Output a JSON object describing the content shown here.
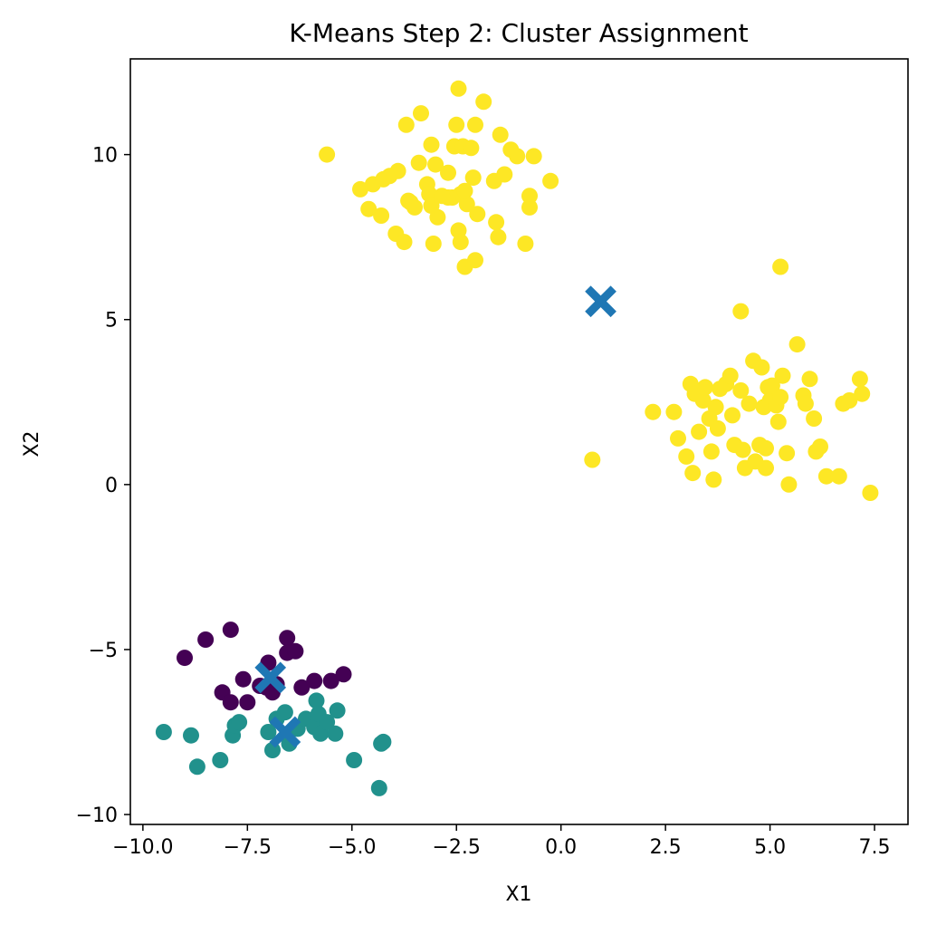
{
  "chart_data": {
    "type": "scatter",
    "title": "K-Means Step 2: Cluster Assignment",
    "xlabel": "X1",
    "ylabel": "X2",
    "xlim": [
      -10.3,
      8.3
    ],
    "ylim": [
      -10.3,
      12.9
    ],
    "xticks": [
      -10.0,
      -7.5,
      -5.0,
      -2.5,
      0.0,
      2.5,
      5.0,
      7.5
    ],
    "xtick_labels": [
      "−10.0",
      "−7.5",
      "−5.0",
      "−2.5",
      "0.0",
      "2.5",
      "5.0",
      "7.5"
    ],
    "yticks": [
      -10,
      -5,
      0,
      5,
      10
    ],
    "ytick_labels": [
      "−10",
      "−5",
      "0",
      "5",
      "10"
    ],
    "grid": false,
    "colors": {
      "cluster_0": "#440154",
      "cluster_1": "#21918c",
      "cluster_2": "#fde725",
      "centroid": "#1f77b4"
    },
    "series": [
      {
        "cluster": 0,
        "color_key": "cluster_0",
        "points": [
          [
            -9.0,
            -5.25
          ],
          [
            -8.5,
            -4.7
          ],
          [
            -7.9,
            -4.4
          ],
          [
            -7.6,
            -5.9
          ],
          [
            -8.1,
            -6.3
          ],
          [
            -7.9,
            -6.6
          ],
          [
            -7.5,
            -6.6
          ],
          [
            -7.0,
            -5.4
          ],
          [
            -7.05,
            -6.15
          ],
          [
            -6.8,
            -6.05
          ],
          [
            -6.55,
            -4.65
          ],
          [
            -6.55,
            -5.1
          ],
          [
            -6.35,
            -5.05
          ],
          [
            -6.2,
            -6.15
          ],
          [
            -5.9,
            -5.95
          ],
          [
            -5.5,
            -5.95
          ],
          [
            -5.2,
            -5.75
          ],
          [
            -7.2,
            -6.1
          ],
          [
            -6.9,
            -6.3
          ]
        ]
      },
      {
        "cluster": 1,
        "color_key": "cluster_1",
        "points": [
          [
            -9.5,
            -7.5
          ],
          [
            -8.85,
            -7.6
          ],
          [
            -8.7,
            -8.55
          ],
          [
            -8.15,
            -8.35
          ],
          [
            -7.85,
            -7.6
          ],
          [
            -7.8,
            -7.3
          ],
          [
            -7.7,
            -7.2
          ],
          [
            -7.0,
            -7.5
          ],
          [
            -6.9,
            -8.05
          ],
          [
            -6.8,
            -7.1
          ],
          [
            -6.6,
            -6.9
          ],
          [
            -6.5,
            -7.85
          ],
          [
            -6.3,
            -7.4
          ],
          [
            -6.1,
            -7.1
          ],
          [
            -5.9,
            -7.35
          ],
          [
            -5.85,
            -6.55
          ],
          [
            -5.8,
            -6.95
          ],
          [
            -5.75,
            -7.55
          ],
          [
            -5.6,
            -7.2
          ],
          [
            -5.4,
            -7.55
          ],
          [
            -5.35,
            -6.85
          ],
          [
            -4.95,
            -8.35
          ],
          [
            -4.3,
            -7.85
          ],
          [
            -4.25,
            -7.8
          ],
          [
            -4.35,
            -9.2
          ]
        ]
      },
      {
        "cluster": 2,
        "color_key": "cluster_2",
        "points": [
          [
            -5.6,
            10.0
          ],
          [
            -4.8,
            8.95
          ],
          [
            -4.6,
            8.35
          ],
          [
            -4.5,
            9.1
          ],
          [
            -4.3,
            8.15
          ],
          [
            -4.25,
            9.25
          ],
          [
            -4.1,
            9.35
          ],
          [
            -3.95,
            7.6
          ],
          [
            -3.9,
            9.5
          ],
          [
            -3.75,
            7.35
          ],
          [
            -3.7,
            10.9
          ],
          [
            -3.65,
            8.6
          ],
          [
            -3.6,
            8.55
          ],
          [
            -3.5,
            8.4
          ],
          [
            -3.4,
            9.75
          ],
          [
            -3.35,
            11.25
          ],
          [
            -3.2,
            9.1
          ],
          [
            -3.15,
            8.8
          ],
          [
            -3.1,
            10.3
          ],
          [
            -3.05,
            7.3
          ],
          [
            -3.0,
            9.7
          ],
          [
            -2.95,
            8.1
          ],
          [
            -2.7,
            9.45
          ],
          [
            -2.55,
            10.25
          ],
          [
            -2.6,
            8.7
          ],
          [
            -2.45,
            12.0
          ],
          [
            -2.4,
            8.8
          ],
          [
            -2.5,
            10.9
          ],
          [
            -2.45,
            7.7
          ],
          [
            -2.4,
            7.35
          ],
          [
            -2.35,
            10.25
          ],
          [
            -2.3,
            6.6
          ],
          [
            -2.25,
            8.5
          ],
          [
            -2.15,
            10.2
          ],
          [
            -2.1,
            9.3
          ],
          [
            -2.05,
            6.8
          ],
          [
            -2.0,
            8.2
          ],
          [
            -2.05,
            10.9
          ],
          [
            -1.85,
            11.6
          ],
          [
            -1.6,
            9.2
          ],
          [
            -1.55,
            7.95
          ],
          [
            -1.5,
            7.5
          ],
          [
            -1.45,
            10.6
          ],
          [
            -1.35,
            9.4
          ],
          [
            -1.2,
            10.15
          ],
          [
            -1.05,
            9.95
          ],
          [
            -0.85,
            7.3
          ],
          [
            -0.75,
            8.75
          ],
          [
            -0.75,
            8.4
          ],
          [
            -0.65,
            9.95
          ],
          [
            -0.25,
            9.2
          ],
          [
            -2.7,
            8.7
          ],
          [
            -3.1,
            8.45
          ],
          [
            -2.3,
            8.9
          ],
          [
            -2.85,
            8.75
          ],
          [
            0.75,
            0.75
          ],
          [
            2.2,
            2.2
          ],
          [
            2.7,
            2.2
          ],
          [
            2.8,
            1.4
          ],
          [
            3.0,
            0.85
          ],
          [
            3.1,
            3.05
          ],
          [
            3.15,
            0.35
          ],
          [
            3.2,
            2.75
          ],
          [
            3.3,
            1.6
          ],
          [
            3.4,
            2.55
          ],
          [
            3.45,
            2.95
          ],
          [
            3.55,
            2.0
          ],
          [
            3.6,
            1.0
          ],
          [
            3.65,
            0.15
          ],
          [
            3.7,
            2.35
          ],
          [
            3.75,
            1.7
          ],
          [
            3.8,
            2.9
          ],
          [
            3.95,
            3.05
          ],
          [
            4.05,
            3.3
          ],
          [
            4.1,
            2.1
          ],
          [
            4.15,
            1.2
          ],
          [
            4.3,
            5.25
          ],
          [
            4.3,
            2.85
          ],
          [
            4.35,
            1.05
          ],
          [
            4.4,
            0.5
          ],
          [
            4.5,
            2.45
          ],
          [
            4.6,
            3.75
          ],
          [
            4.65,
            0.7
          ],
          [
            4.75,
            1.2
          ],
          [
            4.8,
            3.55
          ],
          [
            4.85,
            2.35
          ],
          [
            4.9,
            0.5
          ],
          [
            4.9,
            1.1
          ],
          [
            4.95,
            2.95
          ],
          [
            5.0,
            2.55
          ],
          [
            5.05,
            3.0
          ],
          [
            5.15,
            2.4
          ],
          [
            5.2,
            1.9
          ],
          [
            5.25,
            2.65
          ],
          [
            5.25,
            6.6
          ],
          [
            5.3,
            3.3
          ],
          [
            5.4,
            0.95
          ],
          [
            5.45,
            0.0
          ],
          [
            5.65,
            4.25
          ],
          [
            5.8,
            2.7
          ],
          [
            5.85,
            2.45
          ],
          [
            5.95,
            3.2
          ],
          [
            6.05,
            2.0
          ],
          [
            6.1,
            1.0
          ],
          [
            6.2,
            1.15
          ],
          [
            6.35,
            0.25
          ],
          [
            6.65,
            0.25
          ],
          [
            6.75,
            2.45
          ],
          [
            6.9,
            2.55
          ],
          [
            7.15,
            3.2
          ],
          [
            7.2,
            2.75
          ],
          [
            7.4,
            -0.25
          ]
        ]
      }
    ],
    "centroids": [
      {
        "x": 0.95,
        "y": 5.55
      },
      {
        "x": -6.95,
        "y": -5.85
      },
      {
        "x": -6.6,
        "y": -7.5
      }
    ]
  }
}
